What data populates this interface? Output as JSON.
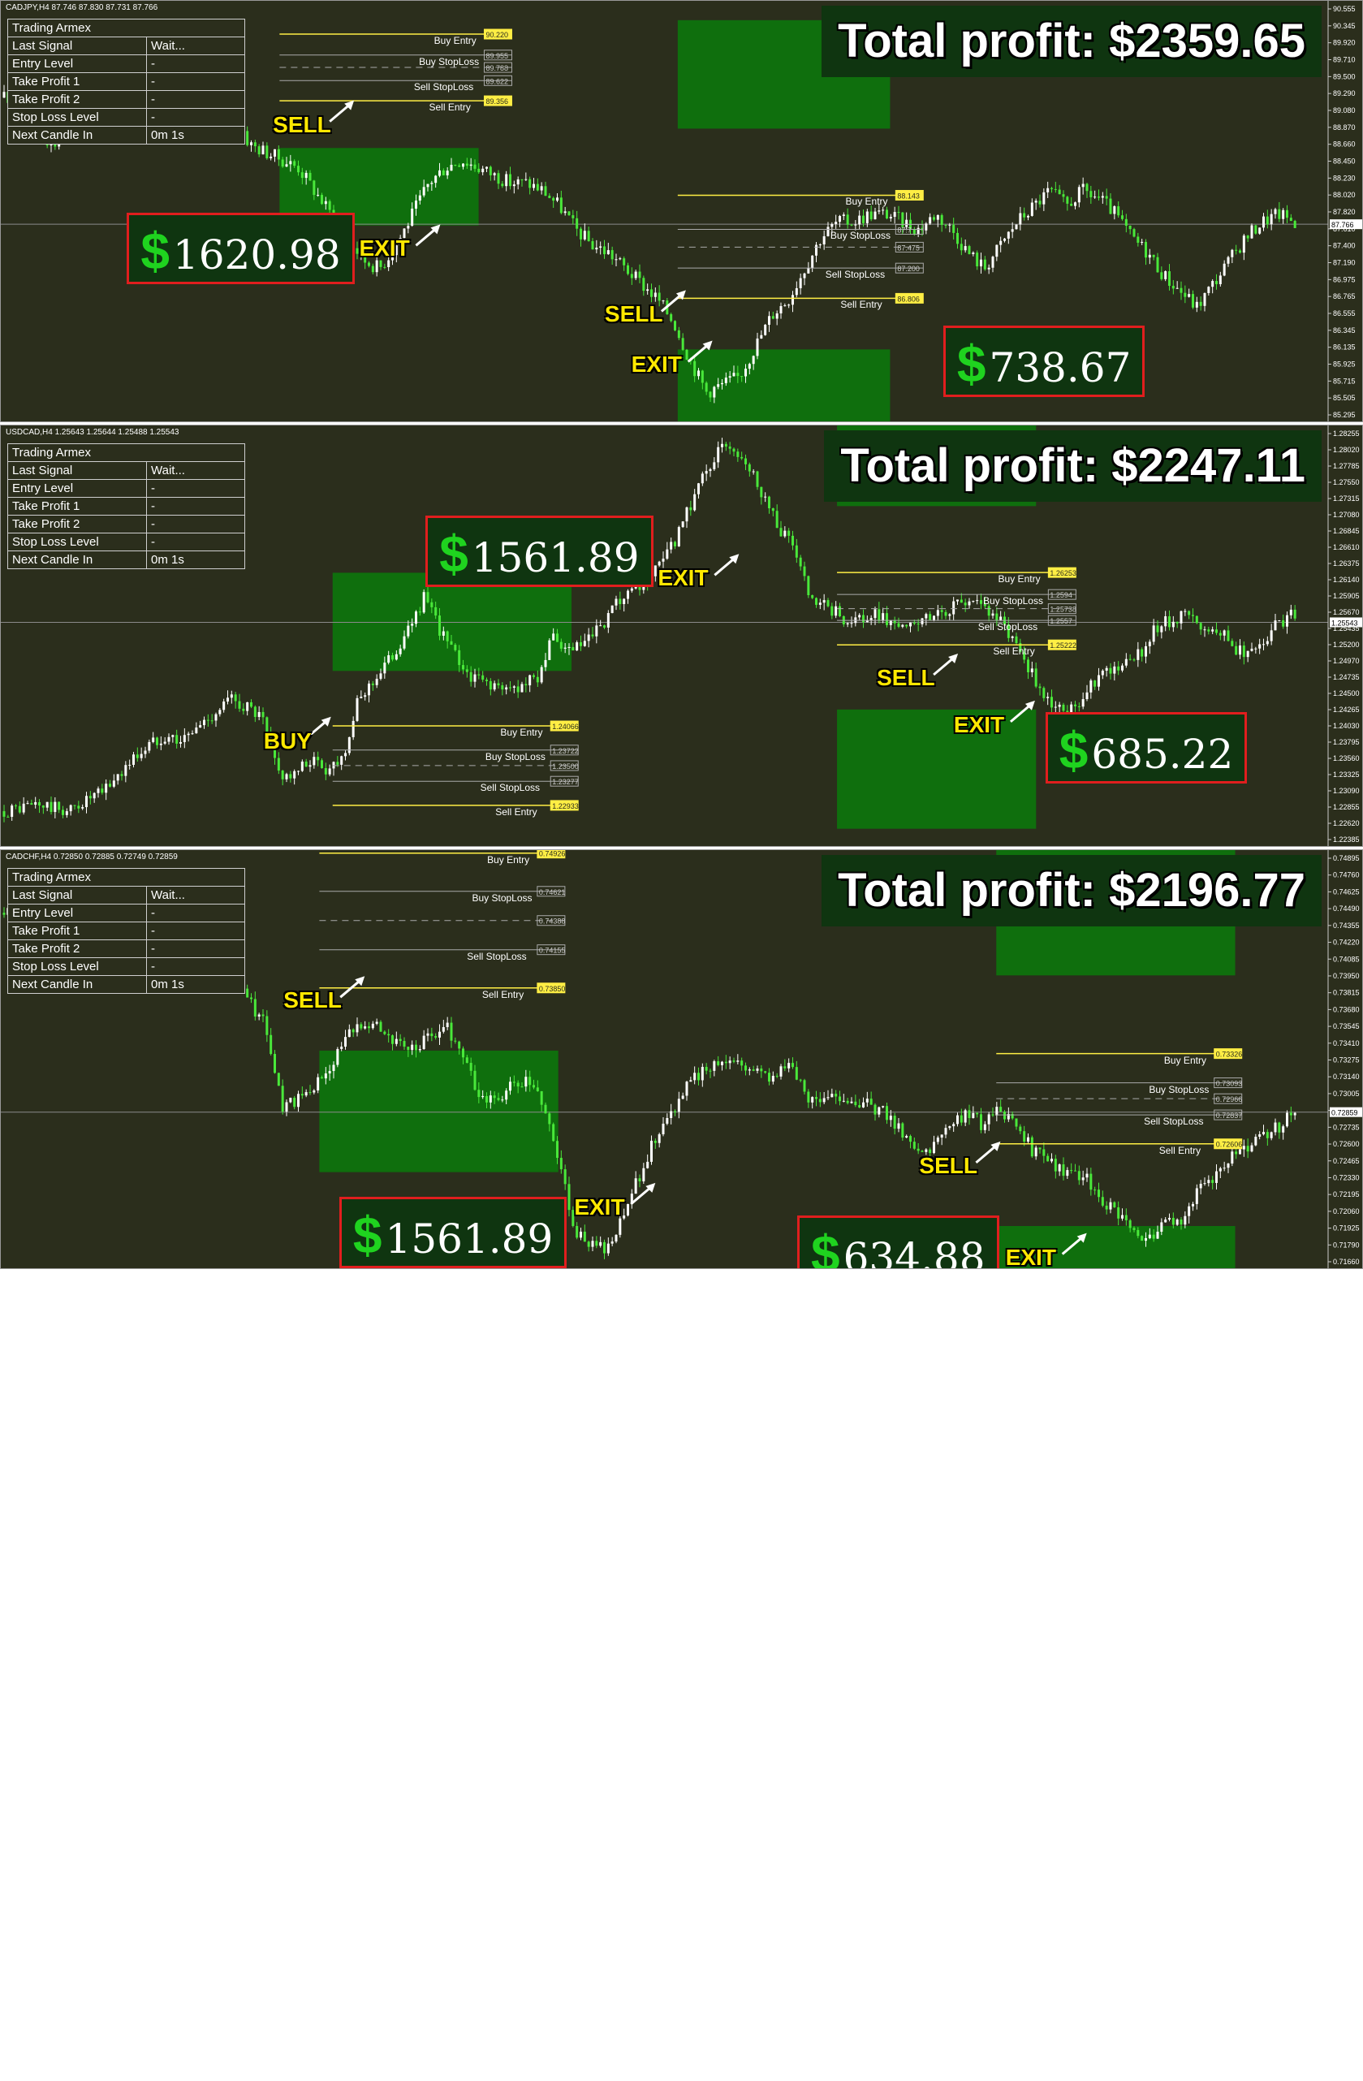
{
  "chart_data": [
    {
      "type": "candlestick",
      "symbol_header": "CADJPY,H4  87.746 87.830 87.731 87.766",
      "total_profit": "Total profit: $2359.65",
      "y_ticks": [
        "90.555",
        "90.345",
        "89.920",
        "89.710",
        "89.500",
        "89.290",
        "89.080",
        "88.870",
        "88.660",
        "88.450",
        "88.230",
        "88.020",
        "87.820",
        "87.610",
        "87.400",
        "87.190",
        "86.975",
        "86.765",
        "86.555",
        "86.345",
        "86.135",
        "85.925",
        "85.715",
        "85.505",
        "85.295"
      ],
      "ylim": [
        85.2,
        90.65
      ],
      "current_price": "87.766",
      "close_path": [
        89.4,
        89.2,
        89.0,
        88.8,
        88.9,
        89.0,
        89.4,
        89.6,
        89.8,
        89.9,
        89.7,
        89.8,
        89.6,
        89.5,
        89.3,
        88.8,
        88.7,
        88.6,
        88.5,
        88.2,
        87.9,
        87.6,
        87.3,
        87.2,
        87.5,
        87.9,
        88.3,
        88.5,
        88.6,
        88.5,
        88.4,
        88.3,
        88.3,
        88.2,
        88.0,
        87.7,
        87.5,
        87.4,
        87.2,
        87.0,
        86.8,
        86.5,
        86.0,
        85.6,
        85.7,
        85.8,
        86.2,
        86.6,
        86.8,
        87.2,
        87.6,
        87.8,
        87.8,
        87.9,
        87.9,
        87.8,
        87.7,
        87.9,
        87.7,
        87.4,
        87.2,
        87.5,
        87.8,
        88.0,
        88.2,
        88.0,
        88.2,
        88.1,
        87.9,
        87.6,
        87.4,
        87.1,
        86.9,
        86.7,
        87.0,
        87.3,
        87.6,
        87.8,
        87.9,
        87.8
      ],
      "signals": [
        {
          "label": "SELL",
          "x_frac": 0.205,
          "y": 89.05
        },
        {
          "label": "EXIT",
          "x_frac": 0.27,
          "y": 87.45
        },
        {
          "label": "SELL",
          "x_frac": 0.455,
          "y": 86.6
        },
        {
          "label": "EXIT",
          "x_frac": 0.475,
          "y": 85.95
        }
      ],
      "profits": [
        {
          "value": "1620.98",
          "x_frac": 0.095,
          "y": 87.45
        },
        {
          "value": "738.67",
          "x_frac": 0.71,
          "y": 86.0
        }
      ],
      "zones": [
        {
          "x0": 0.21,
          "x1": 0.36,
          "y0": 87.75,
          "y1": 88.75
        },
        {
          "x0": 0.51,
          "x1": 0.67,
          "y0": 89.0,
          "y1": 90.4
        },
        {
          "x0": 0.51,
          "x1": 0.67,
          "y0": 85.2,
          "y1": 86.15
        }
      ],
      "levels": [
        {
          "label": "Buy Entry",
          "value": "90.220",
          "y": 90.22,
          "x0": 0.21,
          "x1": 0.385,
          "color": "#ffee44",
          "dash": false
        },
        {
          "label": "Buy StopLoss",
          "value": "89.955",
          "y": 89.95,
          "x0": 0.21,
          "x1": 0.385,
          "color": "#aaaaaa",
          "dash": false
        },
        {
          "label": "",
          "value": "89.788",
          "y": 89.79,
          "x0": 0.21,
          "x1": 0.385,
          "color": "#aaaaaa",
          "dash": true
        },
        {
          "label": "Sell StopLoss",
          "value": "89.622",
          "y": 89.62,
          "x0": 0.21,
          "x1": 0.385,
          "color": "#aaaaaa",
          "dash": false
        },
        {
          "label": "Sell Entry",
          "value": "89.356",
          "y": 89.36,
          "x0": 0.21,
          "x1": 0.385,
          "color": "#ffee44",
          "dash": false
        },
        {
          "label": "Buy Entry",
          "value": "88.143",
          "y": 88.14,
          "x0": 0.51,
          "x1": 0.695,
          "color": "#ffee44",
          "dash": false
        },
        {
          "label": "Buy StopLoss",
          "value": "87.7",
          "y": 87.7,
          "x0": 0.51,
          "x1": 0.695,
          "color": "#aaaaaa",
          "dash": false
        },
        {
          "label": "",
          "value": "87.475",
          "y": 87.47,
          "x0": 0.51,
          "x1": 0.695,
          "color": "#aaaaaa",
          "dash": true
        },
        {
          "label": "Sell StopLoss",
          "value": "87.200",
          "y": 87.2,
          "x0": 0.51,
          "x1": 0.695,
          "color": "#aaaaaa",
          "dash": false
        },
        {
          "label": "Sell Entry",
          "value": "86.806",
          "y": 86.81,
          "x0": 0.51,
          "x1": 0.695,
          "color": "#ffee44",
          "dash": false
        }
      ]
    },
    {
      "type": "candlestick",
      "symbol_header": "USDCAD,H4  1.25643 1.25644 1.25488 1.25543",
      "total_profit": "Total profit: $2247.11",
      "y_ticks": [
        "1.28255",
        "1.28020",
        "1.27785",
        "1.27550",
        "1.27315",
        "1.27080",
        "1.26845",
        "1.26610",
        "1.26375",
        "1.26140",
        "1.25905",
        "1.25670",
        "1.25435",
        "1.25200",
        "1.24970",
        "1.24735",
        "1.24500",
        "1.24265",
        "1.24030",
        "1.23795",
        "1.23560",
        "1.23325",
        "1.23090",
        "1.22855",
        "1.22620",
        "1.22385"
      ],
      "ylim": [
        1.2233,
        1.2835
      ],
      "current_price": "1.25543",
      "close_path": [
        1.2285,
        1.229,
        1.2295,
        1.229,
        1.2285,
        1.23,
        1.231,
        1.2335,
        1.236,
        1.238,
        1.2395,
        1.2385,
        1.2405,
        1.2425,
        1.2445,
        1.2435,
        1.2415,
        1.234,
        1.2335,
        1.236,
        1.2345,
        1.2365,
        1.2445,
        1.2475,
        1.2505,
        1.254,
        1.259,
        1.2545,
        1.2505,
        1.2475,
        1.247,
        1.2455,
        1.2465,
        1.2475,
        1.253,
        1.251,
        1.2525,
        1.2545,
        1.258,
        1.2595,
        1.2615,
        1.2645,
        1.269,
        1.275,
        1.279,
        1.281,
        1.2785,
        1.274,
        1.269,
        1.266,
        1.258,
        1.2575,
        1.256,
        1.2555,
        1.2565,
        1.2555,
        1.2545,
        1.2555,
        1.257,
        1.2575,
        1.259,
        1.2575,
        1.2545,
        1.2515,
        1.2465,
        1.2435,
        1.2425,
        1.2455,
        1.2485,
        1.2495,
        1.2495,
        1.2535,
        1.2555,
        1.2565,
        1.2555,
        1.2545,
        1.2525,
        1.2505,
        1.2525,
        1.2555,
        1.2565
      ],
      "signals": [
        {
          "label": "BUY",
          "x_frac": 0.198,
          "y": 1.2385
        },
        {
          "label": "EXIT",
          "x_frac": 0.495,
          "y": 1.2617
        },
        {
          "label": "SELL",
          "x_frac": 0.66,
          "y": 1.2475
        },
        {
          "label": "EXIT",
          "x_frac": 0.718,
          "y": 1.2408
        }
      ],
      "profits": [
        {
          "value": "1561.89",
          "x_frac": 0.32,
          "y": 1.2655
        },
        {
          "value": "685.22",
          "x_frac": 0.787,
          "y": 1.2375
        }
      ],
      "zones": [
        {
          "x0": 0.25,
          "x1": 0.43,
          "y0": 1.2485,
          "y1": 1.2625
        },
        {
          "x0": 0.63,
          "x1": 0.78,
          "y0": 1.272,
          "y1": 1.2835
        },
        {
          "x0": 0.63,
          "x1": 0.78,
          "y0": 1.226,
          "y1": 1.243
        }
      ],
      "levels": [
        {
          "label": "Buy Entry",
          "value": "1.24066",
          "y": 1.24066,
          "x0": 0.25,
          "x1": 0.435,
          "color": "#ffee44",
          "dash": false
        },
        {
          "label": "Buy StopLoss",
          "value": "1.23722",
          "y": 1.23722,
          "x0": 0.25,
          "x1": 0.435,
          "color": "#aaaaaa",
          "dash": false
        },
        {
          "label": "",
          "value": "1.23500",
          "y": 1.235,
          "x0": 0.25,
          "x1": 0.435,
          "color": "#aaaaaa",
          "dash": true
        },
        {
          "label": "Sell StopLoss",
          "value": "1.23277",
          "y": 1.23277,
          "x0": 0.25,
          "x1": 0.435,
          "color": "#aaaaaa",
          "dash": false
        },
        {
          "label": "Sell Entry",
          "value": "1.22933",
          "y": 1.22933,
          "x0": 0.25,
          "x1": 0.435,
          "color": "#ffee44",
          "dash": false
        },
        {
          "label": "Buy Entry",
          "value": "1.26253",
          "y": 1.26253,
          "x0": 0.63,
          "x1": 0.81,
          "color": "#ffee44",
          "dash": false
        },
        {
          "label": "Buy StopLoss",
          "value": "1.2594",
          "y": 1.2594,
          "x0": 0.63,
          "x1": 0.81,
          "color": "#aaaaaa",
          "dash": false
        },
        {
          "label": "",
          "value": "1.25738",
          "y": 1.25738,
          "x0": 0.63,
          "x1": 0.81,
          "color": "#aaaaaa",
          "dash": true
        },
        {
          "label": "Sell StopLoss",
          "value": "1.2557",
          "y": 1.2557,
          "x0": 0.63,
          "x1": 0.81,
          "color": "#aaaaaa",
          "dash": false
        },
        {
          "label": "Sell Entry",
          "value": "1.25222",
          "y": 1.25222,
          "x0": 0.63,
          "x1": 0.81,
          "color": "#ffee44",
          "dash": false
        }
      ]
    },
    {
      "type": "candlestick",
      "symbol_header": "CADCHF,H4  0.72850 0.72885 0.72749 0.72859",
      "total_profit": "Total profit: $2196.77",
      "y_ticks": [
        "0.74895",
        "0.74760",
        "0.74625",
        "0.74490",
        "0.74355",
        "0.74220",
        "0.74085",
        "0.73950",
        "0.73815",
        "0.73680",
        "0.73545",
        "0.73410",
        "0.73275",
        "0.73140",
        "0.73005",
        "0.72870",
        "0.72735",
        "0.72600",
        "0.72465",
        "0.72330",
        "0.72195",
        "0.72060",
        "0.71925",
        "0.71790",
        "0.71660"
      ],
      "ylim": [
        0.716,
        0.7495
      ],
      "current_price": "0.72859",
      "close_path": [
        0.7445,
        0.745,
        0.7455,
        0.746,
        0.7458,
        0.7452,
        0.7455,
        0.7462,
        0.747,
        0.745,
        0.74,
        0.7385,
        0.7395,
        0.741,
        0.7395,
        0.7375,
        0.7355,
        0.729,
        0.7295,
        0.7305,
        0.7325,
        0.7345,
        0.736,
        0.7355,
        0.734,
        0.7335,
        0.7345,
        0.7355,
        0.7335,
        0.73,
        0.7295,
        0.7305,
        0.731,
        0.7295,
        0.7245,
        0.719,
        0.718,
        0.7175,
        0.7205,
        0.724,
        0.727,
        0.729,
        0.731,
        0.732,
        0.733,
        0.7325,
        0.732,
        0.7315,
        0.7325,
        0.73,
        0.7295,
        0.73,
        0.7295,
        0.729,
        0.7285,
        0.727,
        0.7255,
        0.726,
        0.7275,
        0.7285,
        0.7275,
        0.729,
        0.727,
        0.7255,
        0.7245,
        0.724,
        0.7235,
        0.722,
        0.7205,
        0.719,
        0.7185,
        0.7195,
        0.72,
        0.722,
        0.7235,
        0.725,
        0.7255,
        0.7265,
        0.7275,
        0.7286
      ],
      "signals": [
        {
          "label": "SELL",
          "x_frac": 0.213,
          "y": 0.7375
        },
        {
          "label": "EXIT",
          "x_frac": 0.432,
          "y": 0.721
        },
        {
          "label": "SELL",
          "x_frac": 0.692,
          "y": 0.7243
        },
        {
          "label": "EXIT",
          "x_frac": 0.757,
          "y": 0.717
        }
      ],
      "profits": [
        {
          "value": "1561.89",
          "x_frac": 0.255,
          "y": 0.719
        },
        {
          "value": "634.88",
          "x_frac": 0.6,
          "y": 0.7175
        }
      ],
      "zones": [
        {
          "x0": 0.24,
          "x1": 0.42,
          "y0": 0.7238,
          "y1": 0.7335
        },
        {
          "x0": 0.75,
          "x1": 0.93,
          "y0": 0.7395,
          "y1": 0.7495
        },
        {
          "x0": 0.75,
          "x1": 0.93,
          "y0": 0.716,
          "y1": 0.7195
        }
      ],
      "levels": [
        {
          "label": "Buy Entry",
          "value": "0.74926",
          "y": 0.74926,
          "x0": 0.24,
          "x1": 0.425,
          "color": "#ffee44",
          "dash": false
        },
        {
          "label": "Buy StopLoss",
          "value": "0.74621",
          "y": 0.74621,
          "x0": 0.24,
          "x1": 0.425,
          "color": "#aaaaaa",
          "dash": false
        },
        {
          "label": "",
          "value": "0.74388",
          "y": 0.74388,
          "x0": 0.24,
          "x1": 0.425,
          "color": "#aaaaaa",
          "dash": true
        },
        {
          "label": "Sell StopLoss",
          "value": "0.74155",
          "y": 0.74155,
          "x0": 0.24,
          "x1": 0.425,
          "color": "#aaaaaa",
          "dash": false
        },
        {
          "label": "Sell Entry",
          "value": "0.73850",
          "y": 0.7385,
          "x0": 0.24,
          "x1": 0.425,
          "color": "#ffee44",
          "dash": false
        },
        {
          "label": "Buy Entry",
          "value": "0.73326",
          "y": 0.73326,
          "x0": 0.75,
          "x1": 0.935,
          "color": "#ffee44",
          "dash": false
        },
        {
          "label": "Buy StopLoss",
          "value": "0.73093",
          "y": 0.73093,
          "x0": 0.75,
          "x1": 0.935,
          "color": "#aaaaaa",
          "dash": false
        },
        {
          "label": "",
          "value": "0.72966",
          "y": 0.72966,
          "x0": 0.75,
          "x1": 0.935,
          "color": "#aaaaaa",
          "dash": true
        },
        {
          "label": "Sell StopLoss",
          "value": "0.72837",
          "y": 0.72837,
          "x0": 0.75,
          "x1": 0.935,
          "color": "#aaaaaa",
          "dash": false
        },
        {
          "label": "Sell Entry",
          "value": "0.72606",
          "y": 0.72606,
          "x0": 0.75,
          "x1": 0.935,
          "color": "#ffee44",
          "dash": false
        }
      ]
    }
  ],
  "info_panel": {
    "title": "Trading Armex",
    "rows": [
      {
        "k": "Last Signal",
        "v": "Wait..."
      },
      {
        "k": "Entry Level",
        "v": "-"
      },
      {
        "k": "Take Profit 1",
        "v": "-"
      },
      {
        "k": "Take Profit 2",
        "v": "-"
      },
      {
        "k": "Stop Loss Level",
        "v": "-"
      },
      {
        "k": "Next Candle In",
        "v": "0m 1s"
      }
    ]
  },
  "colors": {
    "background": "#2b2e1c",
    "bull_candle": "#ffffff",
    "bear_candle": "#49e83a",
    "zone": "#0b7a0b",
    "signal": "#ffe800",
    "profit_border": "#e01e1e",
    "dollar": "#1fd31f"
  }
}
